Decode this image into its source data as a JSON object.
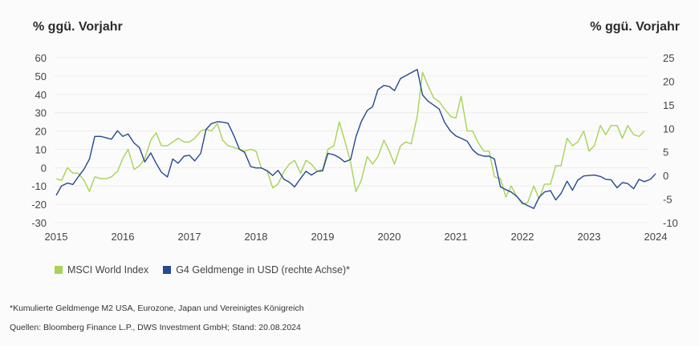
{
  "chart_data": {
    "type": "line",
    "left_axis_title": "% ggü. Vorjahr",
    "right_axis_title": "% ggü. Vorjahr",
    "x_ticks": [
      "2015",
      "2016",
      "2017",
      "2018",
      "2019",
      "2020",
      "2021",
      "2022",
      "2023",
      "2024"
    ],
    "xlim": [
      2015,
      2024
    ],
    "left_ylim": [
      -30,
      60
    ],
    "left_y_ticks": [
      "60",
      "50",
      "40",
      "30",
      "20",
      "10",
      "0",
      "-10",
      "-20",
      "-30"
    ],
    "right_ylim": [
      -10,
      25
    ],
    "right_y_ticks": [
      "25",
      "20",
      "15",
      "10",
      "5",
      "0",
      "-5",
      "-10"
    ],
    "grid": true,
    "legend_position": "bottom-left",
    "series": [
      {
        "name": "MSCI World Index",
        "axis": "left",
        "color": "#a6d455",
        "points": [
          [
            2015.0,
            -6
          ],
          [
            2015.08,
            -7
          ],
          [
            2015.17,
            0
          ],
          [
            2015.25,
            -3
          ],
          [
            2015.33,
            -3
          ],
          [
            2015.42,
            -7
          ],
          [
            2015.5,
            -13
          ],
          [
            2015.58,
            -5
          ],
          [
            2015.67,
            -6
          ],
          [
            2015.75,
            -6
          ],
          [
            2015.83,
            -5
          ],
          [
            2015.92,
            -2
          ],
          [
            2016.0,
            5
          ],
          [
            2016.08,
            10
          ],
          [
            2016.17,
            -1
          ],
          [
            2016.25,
            1
          ],
          [
            2016.33,
            5
          ],
          [
            2016.42,
            15
          ],
          [
            2016.5,
            19
          ],
          [
            2016.58,
            12
          ],
          [
            2016.67,
            12
          ],
          [
            2016.75,
            14
          ],
          [
            2016.83,
            16
          ],
          [
            2016.92,
            14
          ],
          [
            2017.0,
            14
          ],
          [
            2017.08,
            16
          ],
          [
            2017.17,
            20
          ],
          [
            2017.25,
            21
          ],
          [
            2017.33,
            20
          ],
          [
            2017.42,
            24
          ],
          [
            2017.5,
            15
          ],
          [
            2017.58,
            12
          ],
          [
            2017.67,
            11
          ],
          [
            2017.75,
            10
          ],
          [
            2017.83,
            9
          ],
          [
            2017.92,
            10
          ],
          [
            2018.0,
            9
          ],
          [
            2018.08,
            0
          ],
          [
            2018.17,
            -2
          ],
          [
            2018.25,
            -11
          ],
          [
            2018.33,
            -9
          ],
          [
            2018.42,
            -2
          ],
          [
            2018.5,
            2
          ],
          [
            2018.58,
            4
          ],
          [
            2018.67,
            -3
          ],
          [
            2018.75,
            4
          ],
          [
            2018.83,
            2
          ],
          [
            2018.92,
            -2
          ],
          [
            2019.0,
            -1
          ],
          [
            2019.08,
            10
          ],
          [
            2019.17,
            12
          ],
          [
            2019.25,
            25
          ],
          [
            2019.33,
            15
          ],
          [
            2019.42,
            3
          ],
          [
            2019.5,
            -13
          ],
          [
            2019.58,
            -7
          ],
          [
            2019.67,
            6
          ],
          [
            2019.75,
            2
          ],
          [
            2019.83,
            6
          ],
          [
            2019.92,
            15
          ],
          [
            2020.0,
            9
          ],
          [
            2020.08,
            2
          ],
          [
            2020.17,
            12
          ],
          [
            2020.25,
            14
          ],
          [
            2020.33,
            13
          ],
          [
            2020.42,
            28
          ],
          [
            2020.5,
            52
          ],
          [
            2020.58,
            45
          ],
          [
            2020.67,
            38
          ],
          [
            2020.75,
            36
          ],
          [
            2020.83,
            32
          ],
          [
            2020.92,
            28
          ],
          [
            2021.0,
            27
          ],
          [
            2021.08,
            39
          ],
          [
            2021.17,
            20
          ],
          [
            2021.25,
            20
          ],
          [
            2021.33,
            14
          ],
          [
            2021.42,
            9
          ],
          [
            2021.5,
            9
          ],
          [
            2021.58,
            -5
          ],
          [
            2021.67,
            -6
          ],
          [
            2021.75,
            -16
          ],
          [
            2021.83,
            -10
          ],
          [
            2021.92,
            -16
          ],
          [
            2022.0,
            -20
          ],
          [
            2022.08,
            -19
          ],
          [
            2022.17,
            -10
          ],
          [
            2022.25,
            -17
          ],
          [
            2022.33,
            -9
          ],
          [
            2022.42,
            -9
          ],
          [
            2022.5,
            1
          ],
          [
            2022.58,
            1
          ],
          [
            2022.67,
            16
          ],
          [
            2022.75,
            12
          ],
          [
            2022.83,
            14
          ],
          [
            2022.92,
            20
          ],
          [
            2023.0,
            9
          ],
          [
            2023.08,
            12
          ],
          [
            2023.17,
            23
          ],
          [
            2023.25,
            18
          ],
          [
            2023.33,
            23
          ],
          [
            2023.42,
            23
          ],
          [
            2023.5,
            16
          ],
          [
            2023.58,
            23
          ],
          [
            2023.67,
            18
          ],
          [
            2023.75,
            17
          ],
          [
            2023.83,
            20
          ]
        ]
      },
      {
        "name": "G4 Geldmenge in USD (rechte Achse)*",
        "axis": "right",
        "color": "#254a90",
        "points": [
          [
            2015.0,
            -4.2
          ],
          [
            2015.08,
            -2.2
          ],
          [
            2015.17,
            -1.6
          ],
          [
            2015.25,
            -1.9
          ],
          [
            2015.33,
            -0.3
          ],
          [
            2015.42,
            1.4
          ],
          [
            2015.5,
            3.5
          ],
          [
            2015.58,
            8.3
          ],
          [
            2015.67,
            8.3
          ],
          [
            2015.75,
            8
          ],
          [
            2015.83,
            7.7
          ],
          [
            2015.92,
            9.5
          ],
          [
            2016.0,
            8.3
          ],
          [
            2016.08,
            8.8
          ],
          [
            2016.17,
            6.9
          ],
          [
            2016.25,
            5.9
          ],
          [
            2016.33,
            2.9
          ],
          [
            2016.42,
            4.8
          ],
          [
            2016.5,
            2.6
          ],
          [
            2016.58,
            0.7
          ],
          [
            2016.67,
            -0.3
          ],
          [
            2016.75,
            3.5
          ],
          [
            2016.83,
            2.6
          ],
          [
            2016.92,
            4.1
          ],
          [
            2017.0,
            4.3
          ],
          [
            2017.08,
            3.1
          ],
          [
            2017.17,
            4.7
          ],
          [
            2017.25,
            9.8
          ],
          [
            2017.33,
            11
          ],
          [
            2017.42,
            11.4
          ],
          [
            2017.5,
            11.3
          ],
          [
            2017.58,
            11.1
          ],
          [
            2017.67,
            8.4
          ],
          [
            2017.75,
            5.6
          ],
          [
            2017.83,
            4.9
          ],
          [
            2017.92,
            1.9
          ],
          [
            2018.0,
            1.6
          ],
          [
            2018.08,
            1.6
          ],
          [
            2018.17,
            1
          ],
          [
            2018.25,
            0
          ],
          [
            2018.33,
            1.1
          ],
          [
            2018.42,
            -0.8
          ],
          [
            2018.5,
            -1.4
          ],
          [
            2018.58,
            -2.4
          ],
          [
            2018.67,
            -0.6
          ],
          [
            2018.75,
            0.9
          ],
          [
            2018.83,
            0.1
          ],
          [
            2018.92,
            0.9
          ],
          [
            2019.0,
            1
          ],
          [
            2019.08,
            4.7
          ],
          [
            2019.17,
            4.4
          ],
          [
            2019.25,
            3.8
          ],
          [
            2019.33,
            2.9
          ],
          [
            2019.42,
            3.4
          ],
          [
            2019.5,
            8.2
          ],
          [
            2019.58,
            11.4
          ],
          [
            2019.67,
            13.8
          ],
          [
            2019.75,
            14.6
          ],
          [
            2019.83,
            18.2
          ],
          [
            2019.92,
            19.1
          ],
          [
            2020.0,
            18.9
          ],
          [
            2020.08,
            18
          ],
          [
            2020.17,
            20.6
          ],
          [
            2020.25,
            21.2
          ],
          [
            2020.33,
            21.8
          ],
          [
            2020.42,
            22.5
          ],
          [
            2020.5,
            17.1
          ],
          [
            2020.58,
            15.8
          ],
          [
            2020.67,
            14.9
          ],
          [
            2020.75,
            14.1
          ],
          [
            2020.83,
            11.3
          ],
          [
            2020.92,
            9.4
          ],
          [
            2021.0,
            8.4
          ],
          [
            2021.08,
            7.9
          ],
          [
            2021.17,
            7.3
          ],
          [
            2021.25,
            5.5
          ],
          [
            2021.33,
            4.5
          ],
          [
            2021.42,
            4.1
          ],
          [
            2021.5,
            4.1
          ],
          [
            2021.58,
            3.5
          ],
          [
            2021.67,
            -2.4
          ],
          [
            2021.75,
            -3
          ],
          [
            2021.83,
            -3.5
          ],
          [
            2021.92,
            -4.5
          ],
          [
            2022.0,
            -5.8
          ],
          [
            2022.08,
            -6.4
          ],
          [
            2022.17,
            -7
          ],
          [
            2022.25,
            -4.6
          ],
          [
            2022.33,
            -3.5
          ],
          [
            2022.42,
            -3.2
          ],
          [
            2022.5,
            -5.2
          ],
          [
            2022.58,
            -3.8
          ],
          [
            2022.67,
            -1.2
          ],
          [
            2022.75,
            -3.1
          ],
          [
            2022.83,
            -1
          ],
          [
            2022.92,
            -0.1
          ],
          [
            2023.0,
            0
          ],
          [
            2023.08,
            0.1
          ],
          [
            2023.17,
            -0.2
          ],
          [
            2023.25,
            -0.8
          ],
          [
            2023.33,
            -0.9
          ],
          [
            2023.42,
            -2.6
          ],
          [
            2023.5,
            -1.5
          ],
          [
            2023.58,
            -1.7
          ],
          [
            2023.67,
            -2.8
          ],
          [
            2023.75,
            -0.8
          ],
          [
            2023.83,
            -1.3
          ],
          [
            2023.92,
            -0.8
          ],
          [
            2024.0,
            0.4
          ]
        ]
      }
    ]
  },
  "header": {
    "left_title": "% ggü. Vorjahr",
    "right_title": "% ggü. Vorjahr"
  },
  "legend": [
    {
      "label": "MSCI World Index",
      "color": "#a6d455"
    },
    {
      "label": "G4 Geldmenge in USD (rechte Achse)*",
      "color": "#254a90"
    }
  ],
  "footnote": "*Kumulierte Geldmenge M2 USA, Eurozone, Japan und Vereinigtes Königreich",
  "source": "Quellen: Bloomberg Finance L.P., DWS Investment GmbH; Stand: 20.08.2024"
}
